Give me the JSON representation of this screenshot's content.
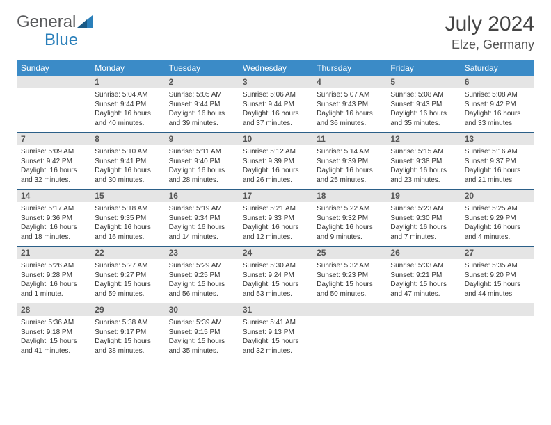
{
  "brand": {
    "general": "General",
    "blue": "Blue"
  },
  "title": "July 2024",
  "location": "Elze, Germany",
  "colors": {
    "header_bg": "#3b8bc7",
    "header_fg": "#ffffff",
    "daynum_bg": "#e5e5e5",
    "row_border": "#2b5f88",
    "text": "#333333"
  },
  "dow": [
    "Sunday",
    "Monday",
    "Tuesday",
    "Wednesday",
    "Thursday",
    "Friday",
    "Saturday"
  ],
  "weeks": [
    [
      null,
      {
        "n": "1",
        "sr": "Sunrise: 5:04 AM",
        "ss": "Sunset: 9:44 PM",
        "dl1": "Daylight: 16 hours",
        "dl2": "and 40 minutes."
      },
      {
        "n": "2",
        "sr": "Sunrise: 5:05 AM",
        "ss": "Sunset: 9:44 PM",
        "dl1": "Daylight: 16 hours",
        "dl2": "and 39 minutes."
      },
      {
        "n": "3",
        "sr": "Sunrise: 5:06 AM",
        "ss": "Sunset: 9:44 PM",
        "dl1": "Daylight: 16 hours",
        "dl2": "and 37 minutes."
      },
      {
        "n": "4",
        "sr": "Sunrise: 5:07 AM",
        "ss": "Sunset: 9:43 PM",
        "dl1": "Daylight: 16 hours",
        "dl2": "and 36 minutes."
      },
      {
        "n": "5",
        "sr": "Sunrise: 5:08 AM",
        "ss": "Sunset: 9:43 PM",
        "dl1": "Daylight: 16 hours",
        "dl2": "and 35 minutes."
      },
      {
        "n": "6",
        "sr": "Sunrise: 5:08 AM",
        "ss": "Sunset: 9:42 PM",
        "dl1": "Daylight: 16 hours",
        "dl2": "and 33 minutes."
      }
    ],
    [
      {
        "n": "7",
        "sr": "Sunrise: 5:09 AM",
        "ss": "Sunset: 9:42 PM",
        "dl1": "Daylight: 16 hours",
        "dl2": "and 32 minutes."
      },
      {
        "n": "8",
        "sr": "Sunrise: 5:10 AM",
        "ss": "Sunset: 9:41 PM",
        "dl1": "Daylight: 16 hours",
        "dl2": "and 30 minutes."
      },
      {
        "n": "9",
        "sr": "Sunrise: 5:11 AM",
        "ss": "Sunset: 9:40 PM",
        "dl1": "Daylight: 16 hours",
        "dl2": "and 28 minutes."
      },
      {
        "n": "10",
        "sr": "Sunrise: 5:12 AM",
        "ss": "Sunset: 9:39 PM",
        "dl1": "Daylight: 16 hours",
        "dl2": "and 26 minutes."
      },
      {
        "n": "11",
        "sr": "Sunrise: 5:14 AM",
        "ss": "Sunset: 9:39 PM",
        "dl1": "Daylight: 16 hours",
        "dl2": "and 25 minutes."
      },
      {
        "n": "12",
        "sr": "Sunrise: 5:15 AM",
        "ss": "Sunset: 9:38 PM",
        "dl1": "Daylight: 16 hours",
        "dl2": "and 23 minutes."
      },
      {
        "n": "13",
        "sr": "Sunrise: 5:16 AM",
        "ss": "Sunset: 9:37 PM",
        "dl1": "Daylight: 16 hours",
        "dl2": "and 21 minutes."
      }
    ],
    [
      {
        "n": "14",
        "sr": "Sunrise: 5:17 AM",
        "ss": "Sunset: 9:36 PM",
        "dl1": "Daylight: 16 hours",
        "dl2": "and 18 minutes."
      },
      {
        "n": "15",
        "sr": "Sunrise: 5:18 AM",
        "ss": "Sunset: 9:35 PM",
        "dl1": "Daylight: 16 hours",
        "dl2": "and 16 minutes."
      },
      {
        "n": "16",
        "sr": "Sunrise: 5:19 AM",
        "ss": "Sunset: 9:34 PM",
        "dl1": "Daylight: 16 hours",
        "dl2": "and 14 minutes."
      },
      {
        "n": "17",
        "sr": "Sunrise: 5:21 AM",
        "ss": "Sunset: 9:33 PM",
        "dl1": "Daylight: 16 hours",
        "dl2": "and 12 minutes."
      },
      {
        "n": "18",
        "sr": "Sunrise: 5:22 AM",
        "ss": "Sunset: 9:32 PM",
        "dl1": "Daylight: 16 hours",
        "dl2": "and 9 minutes."
      },
      {
        "n": "19",
        "sr": "Sunrise: 5:23 AM",
        "ss": "Sunset: 9:30 PM",
        "dl1": "Daylight: 16 hours",
        "dl2": "and 7 minutes."
      },
      {
        "n": "20",
        "sr": "Sunrise: 5:25 AM",
        "ss": "Sunset: 9:29 PM",
        "dl1": "Daylight: 16 hours",
        "dl2": "and 4 minutes."
      }
    ],
    [
      {
        "n": "21",
        "sr": "Sunrise: 5:26 AM",
        "ss": "Sunset: 9:28 PM",
        "dl1": "Daylight: 16 hours",
        "dl2": "and 1 minute."
      },
      {
        "n": "22",
        "sr": "Sunrise: 5:27 AM",
        "ss": "Sunset: 9:27 PM",
        "dl1": "Daylight: 15 hours",
        "dl2": "and 59 minutes."
      },
      {
        "n": "23",
        "sr": "Sunrise: 5:29 AM",
        "ss": "Sunset: 9:25 PM",
        "dl1": "Daylight: 15 hours",
        "dl2": "and 56 minutes."
      },
      {
        "n": "24",
        "sr": "Sunrise: 5:30 AM",
        "ss": "Sunset: 9:24 PM",
        "dl1": "Daylight: 15 hours",
        "dl2": "and 53 minutes."
      },
      {
        "n": "25",
        "sr": "Sunrise: 5:32 AM",
        "ss": "Sunset: 9:23 PM",
        "dl1": "Daylight: 15 hours",
        "dl2": "and 50 minutes."
      },
      {
        "n": "26",
        "sr": "Sunrise: 5:33 AM",
        "ss": "Sunset: 9:21 PM",
        "dl1": "Daylight: 15 hours",
        "dl2": "and 47 minutes."
      },
      {
        "n": "27",
        "sr": "Sunrise: 5:35 AM",
        "ss": "Sunset: 9:20 PM",
        "dl1": "Daylight: 15 hours",
        "dl2": "and 44 minutes."
      }
    ],
    [
      {
        "n": "28",
        "sr": "Sunrise: 5:36 AM",
        "ss": "Sunset: 9:18 PM",
        "dl1": "Daylight: 15 hours",
        "dl2": "and 41 minutes."
      },
      {
        "n": "29",
        "sr": "Sunrise: 5:38 AM",
        "ss": "Sunset: 9:17 PM",
        "dl1": "Daylight: 15 hours",
        "dl2": "and 38 minutes."
      },
      {
        "n": "30",
        "sr": "Sunrise: 5:39 AM",
        "ss": "Sunset: 9:15 PM",
        "dl1": "Daylight: 15 hours",
        "dl2": "and 35 minutes."
      },
      {
        "n": "31",
        "sr": "Sunrise: 5:41 AM",
        "ss": "Sunset: 9:13 PM",
        "dl1": "Daylight: 15 hours",
        "dl2": "and 32 minutes."
      },
      null,
      null,
      null
    ]
  ]
}
